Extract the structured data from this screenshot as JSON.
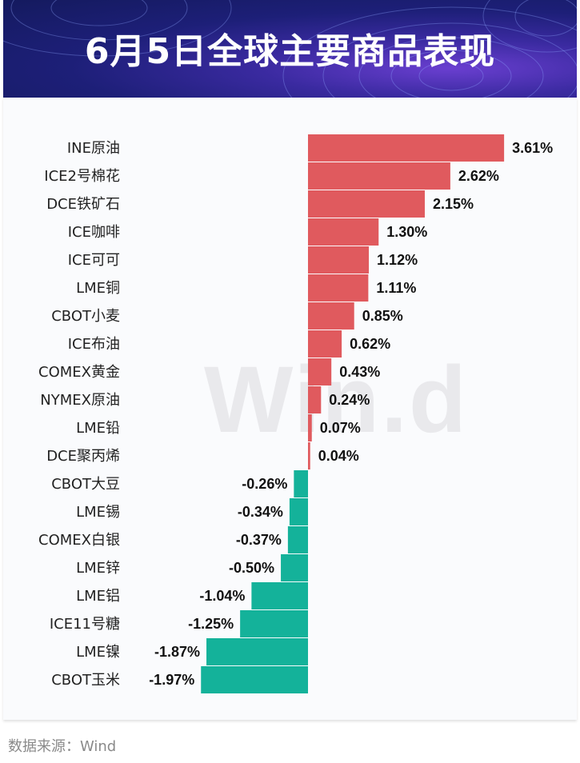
{
  "title": "6月5日全球主要商品表现",
  "source": "数据来源：Wind",
  "watermark": "Win.d",
  "colors": {
    "positive": "#e05a5e",
    "negative": "#14b29a",
    "label": "#222222",
    "value": "#111111"
  },
  "chart_data": {
    "type": "bar",
    "orientation": "horizontal",
    "unit": "%",
    "categories": [
      "INE原油",
      "ICE2号棉花",
      "DCE铁矿石",
      "ICE咖啡",
      "ICE可可",
      "LME铜",
      "CBOT小麦",
      "ICE布油",
      "COMEX黄金",
      "NYMEX原油",
      "LME铅",
      "DCE聚丙烯",
      "CBOT大豆",
      "LME锡",
      "COMEX白银",
      "LME锌",
      "LME铝",
      "ICE11号糖",
      "LME镍",
      "CBOT玉米"
    ],
    "values": [
      3.61,
      2.62,
      2.15,
      1.3,
      1.12,
      1.11,
      0.85,
      0.62,
      0.43,
      0.24,
      0.07,
      0.04,
      -0.26,
      -0.34,
      -0.37,
      -0.5,
      -1.04,
      -1.25,
      -1.87,
      -1.97
    ],
    "value_labels": [
      "3.61%",
      "2.62%",
      "2.15%",
      "1.30%",
      "1.12%",
      "1.11%",
      "0.85%",
      "0.62%",
      "0.43%",
      "0.24%",
      "0.07%",
      "0.04%",
      "-0.26%",
      "-0.34%",
      "-0.37%",
      "-0.50%",
      "-1.04%",
      "-1.25%",
      "-1.87%",
      "-1.97%"
    ],
    "title": "",
    "xlabel": "",
    "ylabel": "",
    "grid": false
  }
}
